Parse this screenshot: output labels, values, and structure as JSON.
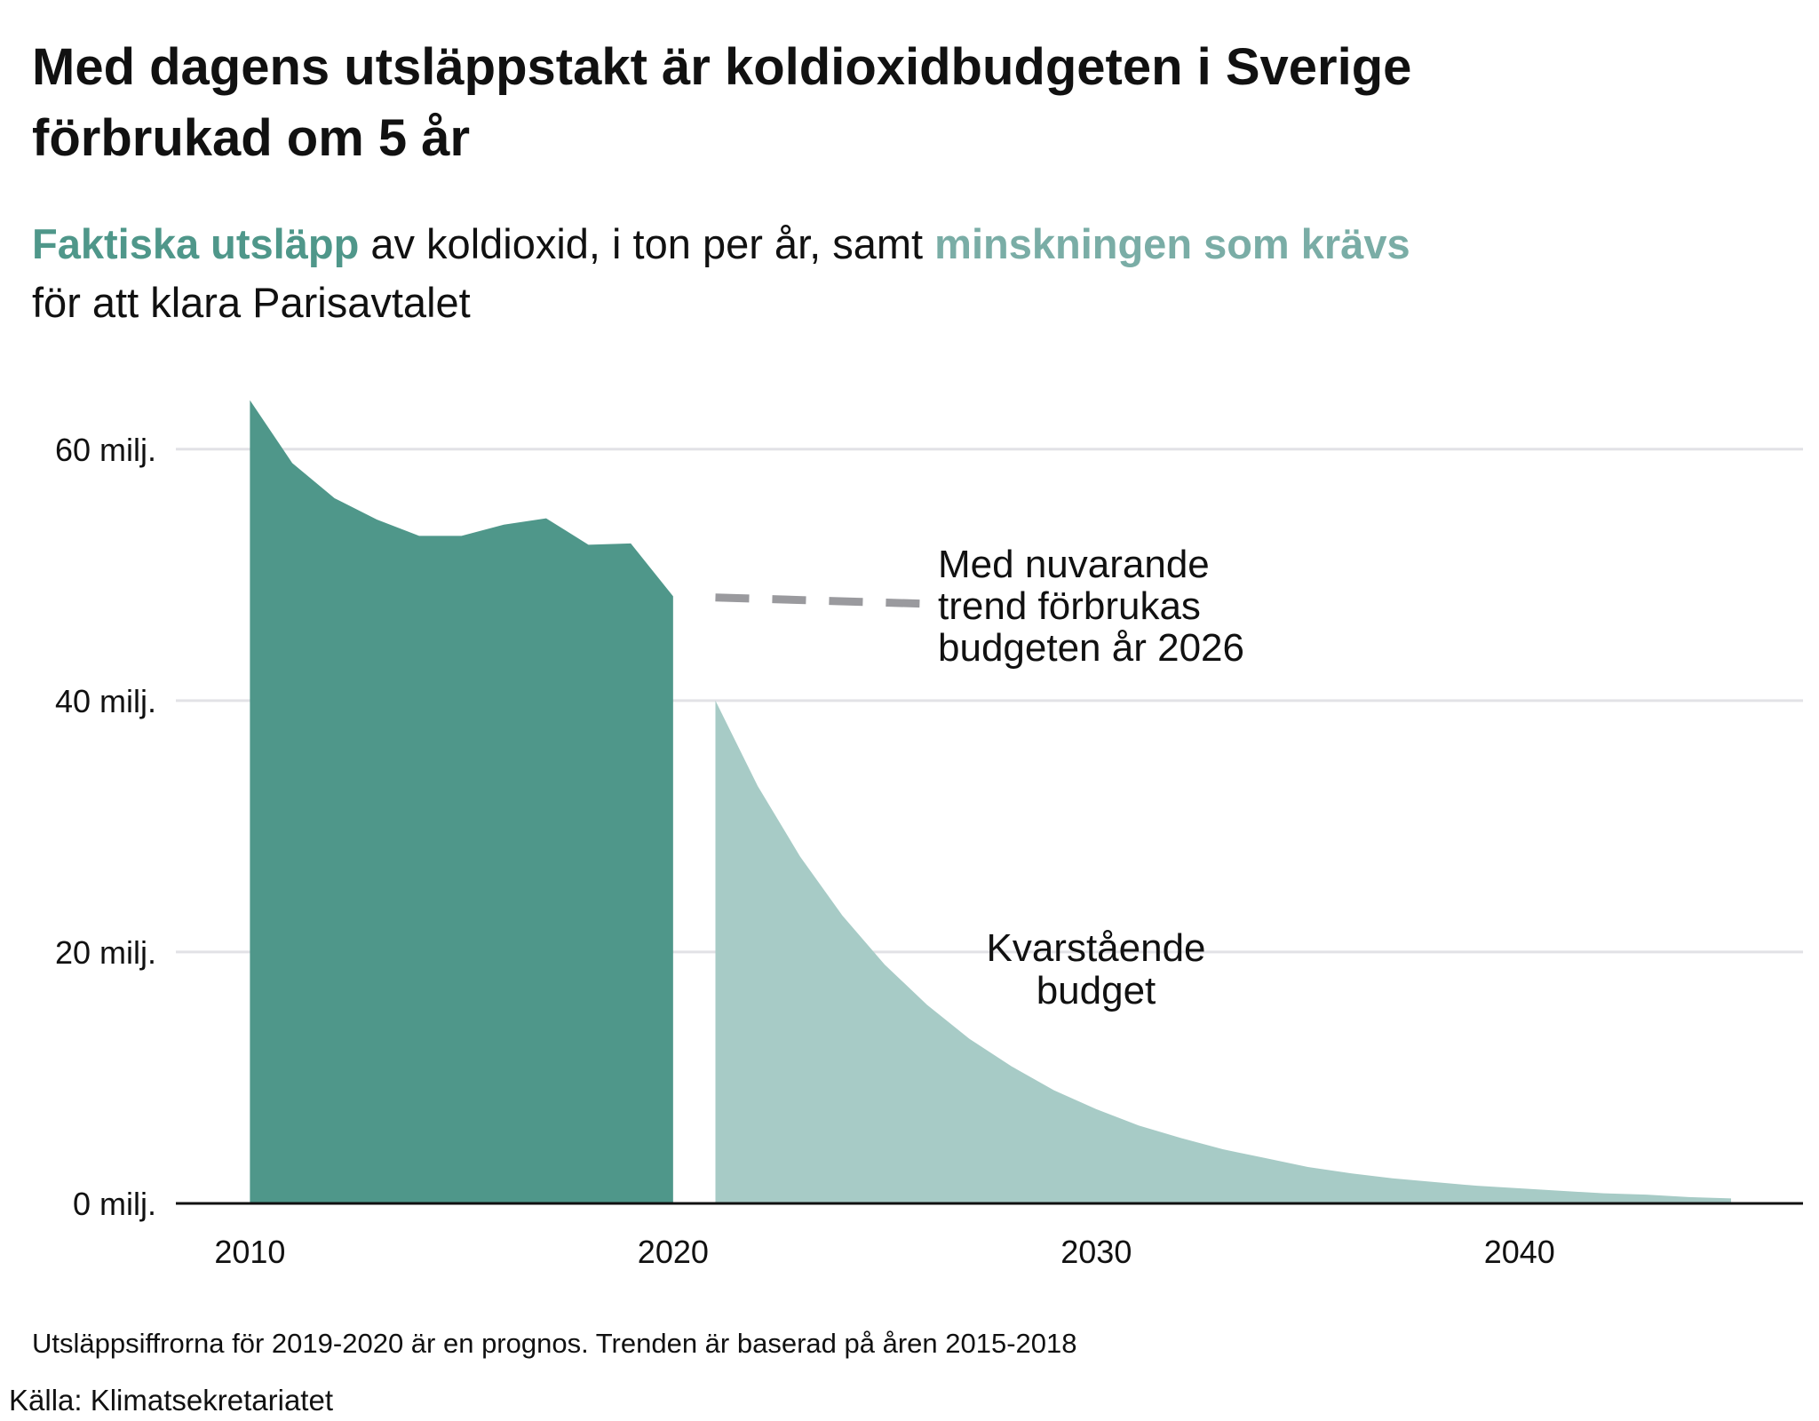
{
  "chart_data": {
    "type": "area",
    "title": [
      "Med dagens utsläppstakt är koldioxidbudgeten i Sverige",
      "förbrukad om 5 år"
    ],
    "subtitle": [
      [
        {
          "text": "Faktiska utsläpp",
          "color": "#4f978a"
        },
        {
          "text": " av koldioxid, i ton per år, samt "
        },
        {
          "text": "minskningen som krävs",
          "color": "#7aada6"
        }
      ],
      [
        {
          "text": "för att klara Parisavtalet"
        }
      ]
    ],
    "xlim": [
      2008.25,
      2046.7
    ],
    "xticks": [
      2010,
      2020,
      2030,
      2040
    ],
    "ylim": [
      0,
      65000000
    ],
    "yticks": [
      {
        "value": 0,
        "label": "0 milj."
      },
      {
        "value": 20000000,
        "label": "20 milj."
      },
      {
        "value": 40000000,
        "label": "40 milj."
      },
      {
        "value": 60000000,
        "label": "60 milj."
      }
    ],
    "grid": true,
    "series": [
      {
        "name": "Faktiska utsläpp",
        "type": "area",
        "color": "#4f978a",
        "x": [
          2010,
          2011,
          2012,
          2013,
          2014,
          2015,
          2016,
          2017,
          2018,
          2019,
          2020
        ],
        "values": [
          63900000,
          58900000,
          56100000,
          54400000,
          53100000,
          53100000,
          54000000,
          54500000,
          52400000,
          52500000,
          48300000
        ]
      },
      {
        "name": "Kvarstående budget",
        "type": "area",
        "color": "#a7cbc6",
        "x": [
          2021,
          2022,
          2023,
          2024,
          2025,
          2026,
          2027,
          2028,
          2029,
          2030,
          2031,
          2032,
          2033,
          2034,
          2035,
          2036,
          2037,
          2038,
          2039,
          2040,
          2041,
          2042,
          2043,
          2044,
          2045
        ],
        "values": [
          40000000,
          33200000,
          27600000,
          22900000,
          19000000,
          15800000,
          13100000,
          10900000,
          9000000,
          7500000,
          6200000,
          5200000,
          4300000,
          3600000,
          2900000,
          2400000,
          2000000,
          1700000,
          1400000,
          1200000,
          1000000,
          800000,
          700000,
          500000,
          400000
        ]
      },
      {
        "name": "Med nuvarande trend",
        "type": "dashed-line",
        "color": "#9a9a9e",
        "x": [
          2021,
          2026
        ],
        "values": [
          48200000,
          47700000
        ]
      }
    ],
    "annotations": [
      {
        "lines": [
          "Med nuvarande",
          "trend förbrukas",
          "budgeten år 2026"
        ],
        "color": "#6a6a72"
      },
      {
        "lines": [
          "Kvarstående",
          "budget"
        ],
        "color": "#7aada6"
      }
    ],
    "footnote": "Utsläppsiffrorna för 2019-2020 är en prognos. Trenden är baserad på åren 2015-2018",
    "source": "Källa: Klimatsekretariatet"
  }
}
